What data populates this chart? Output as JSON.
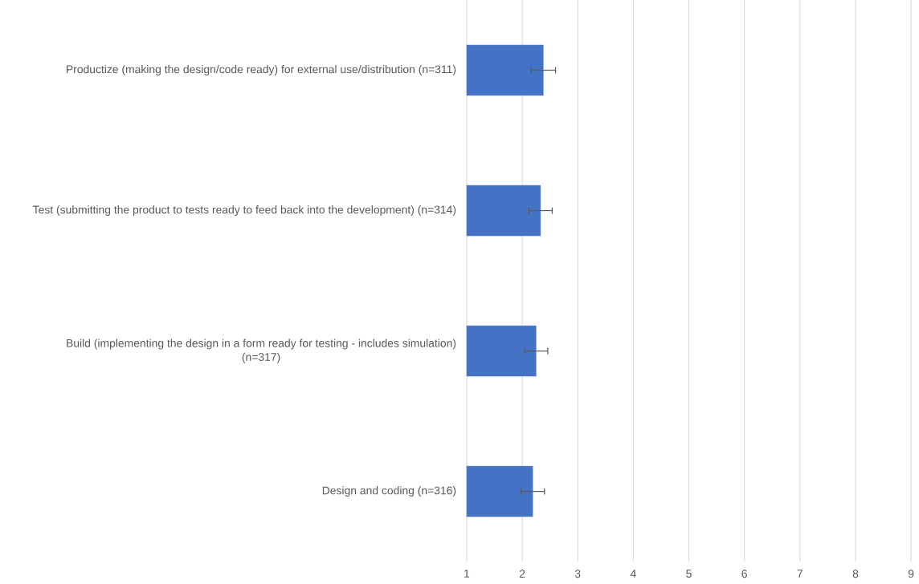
{
  "chart_data": {
    "type": "bar",
    "orientation": "horizontal",
    "categories": [
      "Productize (making the design/code ready) for external use/distribution (n=311)",
      "Test (submitting the product to tests ready to feed back into the development) (n=314)",
      "Build (implementing the design in a form ready for testing - includes simulation) (n=317)",
      "Design and coding (n=316)"
    ],
    "values": [
      2.38,
      2.33,
      2.25,
      2.19
    ],
    "errors": [
      0.22,
      0.21,
      0.21,
      0.21
    ],
    "color": "#4472c4",
    "xlim": [
      1,
      9
    ],
    "xticks": [
      1,
      2,
      3,
      4,
      5,
      6,
      7,
      8,
      9
    ],
    "grid": "x"
  }
}
